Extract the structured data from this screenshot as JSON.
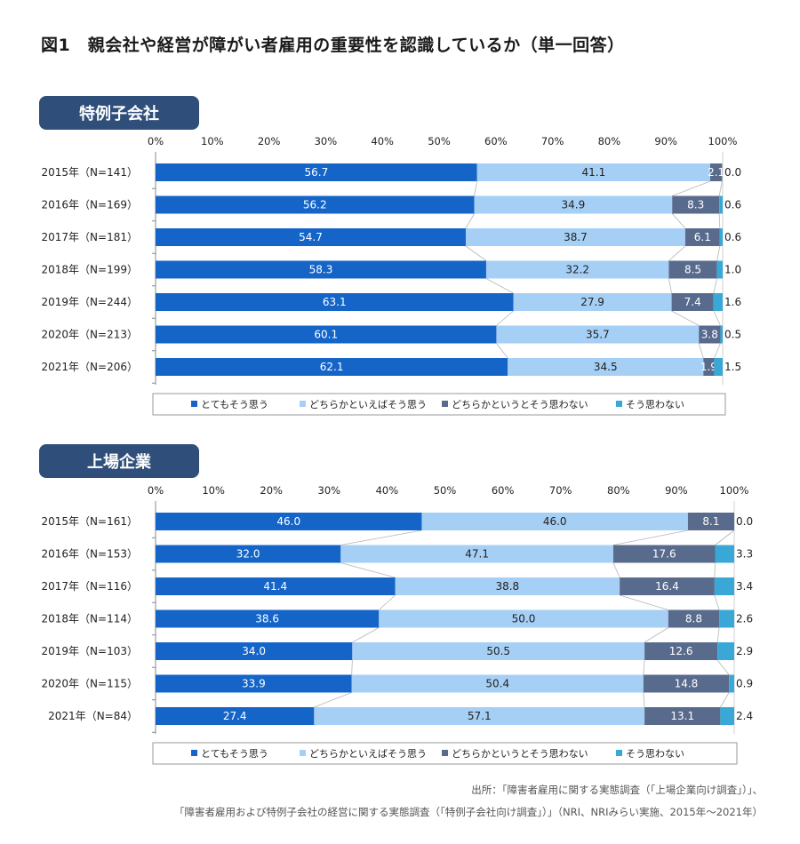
{
  "title": "図1　親会社や経営が障がい者雇用の重要性を認識しているか（単一回答）",
  "colors": {
    "strongly_agree": "#1565c9",
    "agree": "#a6cff5",
    "disagree": "#596b8c",
    "strongly_disagree": "#3aa8d6",
    "section_label_bg": "#2f4e7a"
  },
  "legend": [
    "とてもそう思う",
    "どちらかといえばそう思う",
    "どちらかというとそう思わない",
    "そう思わない"
  ],
  "chart_data": [
    {
      "type": "bar",
      "orientation": "horizontal-stacked-100",
      "title": "特例子会社",
      "x_ticks": [
        "0%",
        "10%",
        "20%",
        "30%",
        "40%",
        "50%",
        "60%",
        "70%",
        "80%",
        "90%",
        "100%"
      ],
      "xlim": [
        0,
        100
      ],
      "legend_position": "bottom",
      "categories": [
        "2015年（N=141）",
        "2016年（N=169）",
        "2017年（N=181）",
        "2018年（N=199）",
        "2019年（N=244）",
        "2020年（N=213）",
        "2021年（N=206）"
      ],
      "series": [
        {
          "name": "とてもそう思う",
          "values": [
            56.7,
            56.2,
            54.7,
            58.3,
            63.1,
            60.1,
            62.1
          ]
        },
        {
          "name": "どちらかといえばそう思う",
          "values": [
            41.1,
            34.9,
            38.7,
            32.2,
            27.9,
            35.7,
            34.5
          ]
        },
        {
          "name": "どちらかというとそう思わない",
          "values": [
            2.1,
            8.3,
            6.1,
            8.5,
            7.4,
            3.8,
            1.9
          ]
        },
        {
          "name": "そう思わない",
          "values": [
            0.0,
            0.6,
            0.6,
            1.0,
            1.6,
            0.5,
            1.5
          ]
        }
      ]
    },
    {
      "type": "bar",
      "orientation": "horizontal-stacked-100",
      "title": "上場企業",
      "x_ticks": [
        "0%",
        "10%",
        "20%",
        "30%",
        "40%",
        "50%",
        "60%",
        "70%",
        "80%",
        "90%",
        "100%"
      ],
      "xlim": [
        0,
        100
      ],
      "legend_position": "bottom",
      "categories": [
        "2015年（N=161）",
        "2016年（N=153）",
        "2017年（N=116）",
        "2018年（N=114）",
        "2019年（N=103）",
        "2020年（N=115）",
        "2021年（N=84）"
      ],
      "series": [
        {
          "name": "とてもそう思う",
          "values": [
            46.0,
            32.0,
            41.4,
            38.6,
            34.0,
            33.9,
            27.4
          ]
        },
        {
          "name": "どちらかといえばそう思う",
          "values": [
            46.0,
            47.1,
            38.8,
            50.0,
            50.5,
            50.4,
            57.1
          ]
        },
        {
          "name": "どちらかというとそう思わない",
          "values": [
            8.1,
            17.6,
            16.4,
            8.8,
            12.6,
            14.8,
            13.1
          ]
        },
        {
          "name": "そう思わない",
          "values": [
            0.0,
            3.3,
            3.4,
            2.6,
            2.9,
            0.9,
            2.4
          ]
        }
      ]
    }
  ],
  "source": {
    "line1": "出所：「障害者雇用に関する実態調査（「上場企業向け調査」）」、",
    "line2": "「障害者雇用および特例子会社の経営に関する実態調査（「特例子会社向け調査」）」（NRI、NRIみらい実施、2015年〜2021年）"
  }
}
